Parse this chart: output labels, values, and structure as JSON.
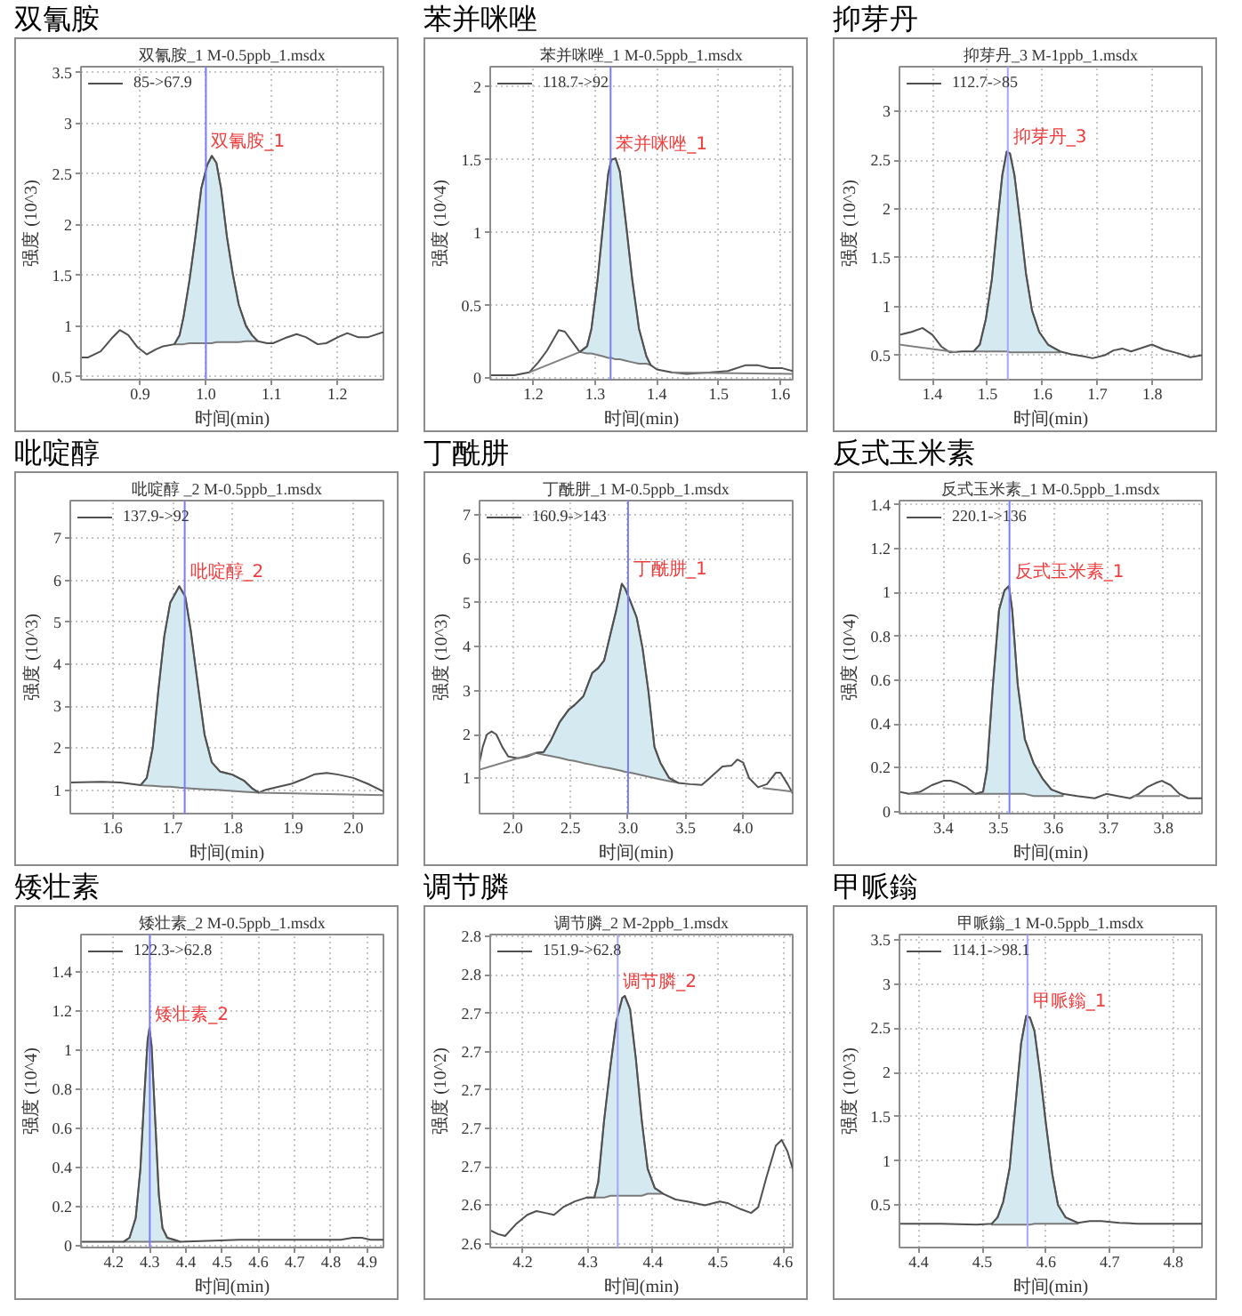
{
  "chart_data": [
    {
      "type": "line",
      "title": "双氰胺",
      "subtitle": "双氰胺_1 M-0.5ppb_1.msdx",
      "xlabel": "时间(min)",
      "ylabel": "强度 (10^3)",
      "xlim": [
        0.81,
        1.27
      ],
      "ylim": [
        0.47,
        3.56
      ],
      "xticks": [
        0.9,
        {
          "value": 1,
          "label": "1.0"
        },
        1.1,
        1.2
      ],
      "yticks": [
        0.5,
        1,
        1.5,
        2,
        2.5,
        3,
        3.5
      ],
      "grid": true,
      "legend": "top left",
      "series": [
        {
          "name": "85->67.9",
          "color": "#505050",
          "x": [
            0.81,
            0.821,
            0.84,
            0.857,
            0.869,
            0.882,
            0.896,
            0.91,
            0.924,
            0.935,
            0.952,
            0.96,
            0.966,
            0.975,
            0.984,
            0.993,
            1.002,
            1.009,
            1.016,
            1.023,
            1.032,
            1.041,
            1.05,
            1.061,
            1.07,
            1.079,
            1.093,
            1.102,
            1.12,
            1.138,
            1.152,
            1.17,
            1.183,
            1.201,
            1.215,
            1.231,
            1.247,
            1.27
          ],
          "values": [
            0.69,
            0.69,
            0.75,
            0.88,
            0.96,
            0.91,
            0.79,
            0.72,
            0.77,
            0.8,
            0.82,
            0.91,
            1.09,
            1.45,
            1.88,
            2.36,
            2.59,
            2.68,
            2.61,
            2.36,
            1.88,
            1.51,
            1.21,
            1.0,
            0.91,
            0.85,
            0.83,
            0.83,
            0.88,
            0.92,
            0.89,
            0.82,
            0.83,
            0.89,
            0.93,
            0.89,
            0.89,
            0.94
          ],
          "lower": [
            null,
            null,
            null,
            null,
            null,
            null,
            null,
            null,
            null,
            null,
            0.82,
            0.82,
            0.82,
            0.83,
            0.83,
            0.83,
            0.83,
            0.83,
            0.84,
            0.84,
            0.84,
            0.84,
            0.84,
            0.85,
            0.85,
            0.85,
            null,
            null,
            null,
            null,
            null,
            null,
            null,
            null,
            null,
            null,
            null,
            null
          ],
          "upper": [
            null,
            null,
            null,
            null,
            null,
            null,
            null,
            null,
            null,
            null,
            0.82,
            0.91,
            1.09,
            1.45,
            1.88,
            2.36,
            2.59,
            2.68,
            2.61,
            2.36,
            1.88,
            1.51,
            1.21,
            1.0,
            0.91,
            0.85,
            null,
            null,
            null,
            null,
            null,
            null,
            null,
            null,
            null,
            null,
            null,
            null
          ]
        }
      ],
      "ref_lines": [
        {
          "axis": "x",
          "value": 1.0,
          "color": "#7b7bff"
        }
      ],
      "annotations": [
        {
          "text": "双氰胺_1",
          "x": 1.0,
          "y": 2.68
        }
      ]
    },
    {
      "type": "line",
      "title": "苯并咪唑",
      "subtitle": "苯并咪唑_1 M-0.5ppb_1.msdx",
      "xlabel": "时间(min)",
      "ylabel": "强度 (10^4)",
      "xlim": [
        1.13,
        1.62
      ],
      "ylim": [
        -0.01,
        2.14
      ],
      "xticks": [
        1.2,
        1.3,
        1.4,
        1.5,
        1.6
      ],
      "yticks": [
        0,
        0.5,
        1,
        1.5,
        2
      ],
      "grid": true,
      "legend": "top left",
      "series": [
        {
          "name": "118.7->92",
          "color": "#505050",
          "x": [
            1.13,
            1.169,
            1.193,
            1.208,
            1.222,
            1.241,
            1.251,
            1.263,
            1.275,
            1.287,
            1.294,
            1.304,
            1.313,
            1.321,
            1.326,
            1.333,
            1.34,
            1.35,
            1.36,
            1.371,
            1.383,
            1.39,
            1.4,
            1.424,
            1.448,
            1.487,
            1.515,
            1.544,
            1.563,
            1.583,
            1.602,
            1.62
          ],
          "values": [
            0.02,
            0.02,
            0.04,
            0.11,
            0.19,
            0.33,
            0.32,
            0.25,
            0.18,
            0.22,
            0.34,
            0.68,
            1.06,
            1.4,
            1.5,
            1.51,
            1.42,
            1.06,
            0.68,
            0.34,
            0.15,
            0.09,
            0.06,
            0.04,
            0.03,
            0.04,
            0.05,
            0.09,
            0.09,
            0.07,
            0.07,
            0.05
          ],
          "lower": [
            null,
            null,
            null,
            null,
            null,
            null,
            null,
            null,
            0.18,
            0.17,
            0.17,
            0.16,
            0.15,
            0.14,
            0.14,
            0.13,
            0.13,
            0.12,
            0.11,
            0.1,
            0.1,
            0.09,
            null,
            null,
            null,
            null,
            null,
            null,
            null,
            null,
            null,
            null
          ],
          "upper": [
            null,
            null,
            null,
            null,
            null,
            null,
            null,
            null,
            0.18,
            0.22,
            0.34,
            0.68,
            1.06,
            1.4,
            1.5,
            1.51,
            1.42,
            1.06,
            0.68,
            0.34,
            0.15,
            0.09,
            null,
            null,
            null,
            null,
            null,
            null,
            null,
            null,
            null,
            null
          ]
        },
        {
          "color": "#808080",
          "x": [
            1.193,
            1.275
          ],
          "values": [
            0.04,
            0.18
          ]
        },
        {
          "color": "#808080",
          "x": [
            1.424,
            1.62
          ],
          "values": [
            0.04,
            0.03
          ]
        }
      ],
      "ref_lines": [
        {
          "axis": "x",
          "value": 1.325,
          "color": "#7b7bff"
        }
      ],
      "annotations": [
        {
          "text": "苯并咪唑_1",
          "x": 1.325,
          "y": 1.51
        }
      ]
    },
    {
      "type": "line",
      "title": "抑芽丹",
      "subtitle": "抑芽丹_3 M-1ppb_1.msdx",
      "xlabel": "时间(min)",
      "ylabel": "强度 (10^3)",
      "xlim": [
        1.34,
        1.89
      ],
      "ylim": [
        0.25,
        3.46
      ],
      "xticks": [
        1.4,
        1.5,
        1.6,
        1.7,
        1.8
      ],
      "yticks": [
        0.5,
        1,
        1.5,
        2,
        2.5,
        3
      ],
      "grid": true,
      "legend": "top left",
      "series": [
        {
          "name": "112.7->85",
          "color": "#505050",
          "x": [
            1.34,
            1.362,
            1.382,
            1.4,
            1.416,
            1.432,
            1.454,
            1.475,
            1.486,
            1.497,
            1.508,
            1.519,
            1.527,
            1.535,
            1.541,
            1.549,
            1.56,
            1.57,
            1.581,
            1.594,
            1.61,
            1.632,
            1.653,
            1.675,
            1.691,
            1.713,
            1.729,
            1.745,
            1.761,
            1.783,
            1.799,
            1.82,
            1.847,
            1.869,
            1.89
          ],
          "values": [
            0.71,
            0.74,
            0.78,
            0.71,
            0.59,
            0.53,
            0.54,
            0.54,
            0.61,
            0.87,
            1.28,
            1.91,
            2.35,
            2.59,
            2.57,
            2.35,
            1.84,
            1.34,
            0.96,
            0.74,
            0.61,
            0.54,
            0.51,
            0.49,
            0.47,
            0.5,
            0.55,
            0.57,
            0.54,
            0.58,
            0.61,
            0.56,
            0.52,
            0.48,
            0.5
          ],
          "lower": [
            null,
            null,
            null,
            null,
            null,
            null,
            null,
            0.54,
            0.54,
            0.54,
            0.54,
            0.54,
            0.54,
            0.54,
            0.53,
            0.53,
            0.53,
            0.53,
            0.53,
            0.53,
            0.53,
            0.53,
            null,
            null,
            null,
            null,
            null,
            null,
            null,
            null,
            null,
            null,
            null,
            null,
            null
          ],
          "upper": [
            null,
            null,
            null,
            null,
            null,
            null,
            null,
            0.54,
            0.61,
            0.87,
            1.28,
            1.91,
            2.35,
            2.59,
            2.57,
            2.35,
            1.84,
            1.34,
            0.96,
            0.74,
            0.61,
            0.54,
            null,
            null,
            null,
            null,
            null,
            null,
            null,
            null,
            null,
            null,
            null,
            null,
            null
          ]
        },
        {
          "color": "#808080",
          "x": [
            1.34,
            1.445
          ],
          "values": [
            0.61,
            0.53
          ]
        }
      ],
      "ref_lines": [
        {
          "axis": "x",
          "value": 1.537,
          "color": "#a6a6ff"
        }
      ],
      "annotations": [
        {
          "text": "抑芽丹_3",
          "x": 1.537,
          "y": 2.59
        }
      ]
    },
    {
      "type": "line",
      "title": "吡啶醇",
      "subtitle": "吡啶醇 _2 M-0.5ppb_1.msdx",
      "xlabel": "时间(min)",
      "ylabel": "强度 (10^3)",
      "xlim": [
        1.53,
        2.05
      ],
      "ylim": [
        0.44,
        7.9
      ],
      "xticks": [
        1.6,
        1.7,
        1.8,
        1.9,
        {
          "value": 2,
          "label": "2.0"
        }
      ],
      "yticks": [
        1,
        2,
        3,
        4,
        5,
        6,
        7
      ],
      "grid": true,
      "legend": "top left",
      "series": [
        {
          "name": "137.9->92",
          "color": "#505050",
          "x": [
            1.53,
            1.564,
            1.583,
            1.613,
            1.647,
            1.657,
            1.667,
            1.676,
            1.686,
            1.696,
            1.711,
            1.721,
            1.73,
            1.742,
            1.753,
            1.765,
            1.779,
            1.799,
            1.819,
            1.833,
            1.843,
            1.853,
            1.873,
            1.897,
            1.917,
            1.936,
            1.956,
            1.975,
            2.0,
            2.024,
            2.05
          ],
          "values": [
            1.18,
            1.19,
            1.2,
            1.18,
            1.12,
            1.29,
            2.02,
            3.34,
            4.66,
            5.47,
            5.86,
            5.61,
            4.81,
            3.49,
            2.32,
            1.66,
            1.44,
            1.37,
            1.22,
            1.03,
            0.94,
            1.0,
            1.07,
            1.15,
            1.26,
            1.38,
            1.41,
            1.37,
            1.29,
            1.15,
            0.97
          ],
          "lower": [
            null,
            null,
            null,
            null,
            1.12,
            1.11,
            1.1,
            1.09,
            1.08,
            1.08,
            1.06,
            1.05,
            1.04,
            1.03,
            1.02,
            1.01,
            1.0,
            0.98,
            0.96,
            0.95,
            0.94,
            null,
            null,
            null,
            null,
            null,
            null,
            null,
            null,
            null,
            null
          ],
          "upper": [
            null,
            null,
            null,
            null,
            1.12,
            1.29,
            2.02,
            3.34,
            4.66,
            5.47,
            5.86,
            5.61,
            4.81,
            3.49,
            2.32,
            1.66,
            1.44,
            1.37,
            1.22,
            1.03,
            0.94,
            null,
            null,
            null,
            null,
            null,
            null,
            null,
            null,
            null,
            null
          ]
        },
        {
          "color": "#808080",
          "x": [
            1.843,
            2.05
          ],
          "values": [
            0.94,
            0.88
          ]
        }
      ],
      "ref_lines": [
        {
          "axis": "x",
          "value": 1.72,
          "color": "#7b7bff"
        }
      ],
      "annotations": [
        {
          "text": "吡啶醇_2",
          "x": 1.72,
          "y": 5.86
        }
      ]
    },
    {
      "type": "line",
      "title": "丁酰肼",
      "subtitle": "丁酰肼_1 M-0.5ppb_1.msdx",
      "xlabel": "时间(min)",
      "ylabel": "强度 (10^3)",
      "xlim": [
        1.71,
        4.43
      ],
      "ylim": [
        0.2,
        7.32
      ],
      "xticks": [
        {
          "value": 2,
          "label": "2.0"
        },
        2.5,
        {
          "value": 3,
          "label": "3.0"
        },
        3.5,
        {
          "value": 4,
          "label": "4.0"
        }
      ],
      "yticks": [
        1,
        2,
        3,
        4,
        5,
        6,
        7
      ],
      "grid": true,
      "legend": "top left",
      "series": [
        {
          "name": "160.9->143",
          "color": "#505050",
          "x": [
            1.71,
            1.738,
            1.774,
            1.815,
            1.856,
            1.907,
            1.959,
            2.046,
            2.123,
            2.2,
            2.267,
            2.329,
            2.406,
            2.483,
            2.535,
            2.612,
            2.689,
            2.74,
            2.792,
            2.843,
            2.895,
            2.946,
            2.972,
            3.023,
            3.075,
            3.126,
            3.177,
            3.229,
            3.28,
            3.357,
            3.434,
            3.537,
            3.64,
            3.692,
            3.769,
            3.82,
            3.897,
            3.949,
            4.0,
            4.051,
            4.129,
            4.206,
            4.283,
            4.324,
            4.386,
            4.43
          ],
          "values": [
            1.36,
            1.72,
            2.0,
            2.07,
            2.0,
            1.72,
            1.5,
            1.46,
            1.5,
            1.58,
            1.6,
            1.86,
            2.28,
            2.56,
            2.67,
            2.87,
            3.4,
            3.51,
            3.68,
            4.24,
            4.8,
            5.43,
            5.33,
            5.01,
            4.66,
            3.96,
            2.98,
            1.72,
            1.36,
            1.01,
            0.9,
            0.87,
            0.85,
            0.97,
            1.15,
            1.27,
            1.29,
            1.43,
            1.36,
            1.01,
            0.8,
            0.87,
            1.13,
            1.13,
            0.87,
            0.66
          ],
          "lower": [
            null,
            null,
            null,
            null,
            null,
            null,
            null,
            null,
            null,
            1.58,
            1.54,
            1.51,
            1.47,
            1.42,
            1.4,
            1.35,
            1.31,
            1.28,
            1.25,
            1.23,
            1.2,
            1.17,
            1.15,
            1.13,
            1.1,
            1.07,
            1.04,
            1.01,
            0.98,
            0.94,
            0.9,
            null,
            null,
            null,
            null,
            null,
            null,
            null,
            null,
            null,
            null,
            null,
            null,
            null,
            null,
            null
          ],
          "upper": [
            null,
            null,
            null,
            null,
            null,
            null,
            null,
            null,
            null,
            1.58,
            1.6,
            1.86,
            2.28,
            2.56,
            2.67,
            2.87,
            3.4,
            3.51,
            3.68,
            4.24,
            4.8,
            5.43,
            5.33,
            5.01,
            4.66,
            3.96,
            2.98,
            1.72,
            1.36,
            1.01,
            0.9,
            null,
            null,
            null,
            null,
            null,
            null,
            null,
            null,
            null,
            null,
            null,
            null,
            null,
            null,
            null
          ]
        },
        {
          "color": "#808080",
          "x": [
            1.71,
            2.2
          ],
          "values": [
            1.2,
            1.58
          ]
        },
        {
          "color": "#808080",
          "x": [
            4.17,
            4.43
          ],
          "values": [
            0.78,
            0.7
          ]
        }
      ],
      "ref_lines": [
        {
          "axis": "x",
          "value": 3.0,
          "color": "#7b7bff"
        }
      ],
      "annotations": [
        {
          "text": "丁酰肼_1",
          "x": 3.0,
          "y": 5.43
        }
      ]
    },
    {
      "type": "line",
      "title": "反式玉米素",
      "subtitle": "反式玉米素_1 M-0.5ppb_1.msdx",
      "xlabel": "时间(min)",
      "ylabel": "强度 (10^4)",
      "xlim": [
        3.32,
        3.87
      ],
      "ylim": [
        -0.01,
        1.42
      ],
      "xticks": [
        3.4,
        3.5,
        3.6,
        3.7,
        3.8
      ],
      "yticks": [
        0,
        0.2,
        0.4,
        0.6,
        0.8,
        1,
        1.2,
        1.4
      ],
      "grid": true,
      "legend": "top left",
      "series": [
        {
          "name": "220.1->136",
          "color": "#505050",
          "x": [
            3.32,
            3.337,
            3.358,
            3.379,
            3.4,
            3.413,
            3.426,
            3.442,
            3.458,
            3.472,
            3.479,
            3.49,
            3.501,
            3.511,
            3.519,
            3.525,
            3.535,
            3.548,
            3.564,
            3.58,
            3.596,
            3.617,
            3.643,
            3.675,
            3.696,
            3.717,
            3.739,
            3.755,
            3.77,
            3.786,
            3.797,
            3.813,
            3.829,
            3.845,
            3.87
          ],
          "values": [
            0.09,
            0.08,
            0.09,
            0.12,
            0.14,
            0.14,
            0.13,
            0.11,
            0.08,
            0.09,
            0.19,
            0.58,
            0.92,
            1.01,
            1.03,
            0.92,
            0.58,
            0.33,
            0.22,
            0.15,
            0.1,
            0.08,
            0.07,
            0.06,
            0.08,
            0.07,
            0.06,
            0.08,
            0.11,
            0.13,
            0.14,
            0.12,
            0.08,
            0.06,
            0.06
          ],
          "lower": [
            null,
            null,
            null,
            null,
            null,
            null,
            null,
            null,
            0.08,
            0.08,
            0.08,
            0.08,
            0.08,
            0.08,
            0.08,
            0.08,
            0.08,
            0.08,
            0.07,
            0.07,
            0.07,
            0.07,
            null,
            null,
            null,
            null,
            null,
            null,
            null,
            null,
            null,
            null,
            null,
            null,
            null
          ],
          "upper": [
            null,
            null,
            null,
            null,
            null,
            null,
            null,
            null,
            0.08,
            0.09,
            0.19,
            0.58,
            0.92,
            1.01,
            1.03,
            0.92,
            0.58,
            0.33,
            0.22,
            0.15,
            0.1,
            0.08,
            null,
            null,
            null,
            null,
            null,
            null,
            null,
            null,
            null,
            null,
            null,
            null,
            null
          ]
        },
        {
          "color": "#808080",
          "x": [
            3.339,
            3.458
          ],
          "values": [
            0.08,
            0.08
          ]
        },
        {
          "color": "#808080",
          "x": [
            3.745,
            3.83
          ],
          "values": [
            0.07,
            0.07
          ]
        }
      ],
      "ref_lines": [
        {
          "axis": "x",
          "value": 3.52,
          "color": "#7b7bff"
        }
      ],
      "annotations": [
        {
          "text": "反式玉米素_1",
          "x": 3.52,
          "y": 1.03
        }
      ]
    },
    {
      "type": "line",
      "title": "矮壮素",
      "subtitle": "矮壮素_2 M-0.5ppb_1.msdx",
      "xlabel": "时间(min)",
      "ylabel": "强度 (10^4)",
      "xlim": [
        4.11,
        4.945
      ],
      "ylim": [
        -0.01,
        1.59
      ],
      "xticks": [
        4.2,
        4.3,
        4.4,
        4.5,
        4.6,
        4.7,
        4.8,
        4.9
      ],
      "yticks": [
        0,
        0.2,
        0.4,
        0.6,
        0.8,
        1,
        1.2,
        1.4
      ],
      "grid": true,
      "legend": "top left",
      "series": [
        {
          "name": "122.3->62.8",
          "color": "#505050",
          "x": [
            4.11,
            4.187,
            4.228,
            4.244,
            4.261,
            4.274,
            4.285,
            4.294,
            4.299,
            4.305,
            4.315,
            4.325,
            4.335,
            4.348,
            4.367,
            4.384,
            4.548,
            4.58,
            4.63,
            4.827,
            4.86,
            4.885,
            4.909,
            4.945
          ],
          "values": [
            0.02,
            0.02,
            0.02,
            0.04,
            0.14,
            0.39,
            0.77,
            1.05,
            1.11,
            1.02,
            0.64,
            0.26,
            0.09,
            0.04,
            0.03,
            0.02,
            0.03,
            0.03,
            0.03,
            0.03,
            0.04,
            0.04,
            0.03,
            0.03
          ],
          "lower": [
            null,
            null,
            0.02,
            0.02,
            0.02,
            0.02,
            0.02,
            0.02,
            0.02,
            0.02,
            0.02,
            0.02,
            0.02,
            0.02,
            0.02,
            0.02,
            null,
            null,
            null,
            null,
            null,
            null,
            null,
            null
          ],
          "upper": [
            null,
            null,
            0.02,
            0.04,
            0.14,
            0.39,
            0.77,
            1.05,
            1.11,
            1.02,
            0.64,
            0.26,
            0.09,
            0.04,
            0.03,
            0.02,
            null,
            null,
            null,
            null,
            null,
            null,
            null,
            null
          ]
        }
      ],
      "ref_lines": [
        {
          "axis": "x",
          "value": 4.3,
          "color": "#7b7bff"
        }
      ],
      "annotations": [
        {
          "text": "矮壮素_2",
          "x": 4.3,
          "y": 1.11
        }
      ]
    },
    {
      "type": "line",
      "title": "调节膦",
      "subtitle": "调节膦_2 M-2ppb_1.msdx",
      "xlabel": "时间(min)",
      "ylabel": "强度 (10^2)",
      "xlim": [
        4.15,
        4.615
      ],
      "ylim": [
        2.618,
        2.781
      ],
      "xticks": [
        4.2,
        4.3,
        4.4,
        4.5,
        4.6
      ],
      "yticks": [
        {
          "value": 2.62,
          "label": "2.6"
        },
        {
          "value": 2.64,
          "label": "2.6"
        },
        {
          "value": 2.66,
          "label": "2.7"
        },
        {
          "value": 2.68,
          "label": "2.7"
        },
        {
          "value": 2.7,
          "label": "2.7"
        },
        {
          "value": 2.72,
          "label": "2.7"
        },
        {
          "value": 2.74,
          "label": "2.7"
        },
        {
          "value": 2.76,
          "label": "2.8"
        },
        {
          "value": 2.78,
          "label": "2.8"
        }
      ],
      "grid": true,
      "legend": "top left",
      "series": [
        {
          "name": "151.9->62.8",
          "color": "#505050",
          "x": [
            4.15,
            4.162,
            4.173,
            4.189,
            4.207,
            4.221,
            4.235,
            4.248,
            4.262,
            4.28,
            4.298,
            4.31,
            4.316,
            4.325,
            4.335,
            4.344,
            4.353,
            4.357,
            4.365,
            4.374,
            4.383,
            4.392,
            4.403,
            4.416,
            4.435,
            4.453,
            4.48,
            4.503,
            4.516,
            4.535,
            4.551,
            4.562,
            4.575,
            4.589,
            4.598,
            4.607,
            4.615
          ],
          "values": [
            2.627,
            2.625,
            2.624,
            2.63,
            2.635,
            2.637,
            2.636,
            2.635,
            2.639,
            2.642,
            2.644,
            2.644,
            2.652,
            2.684,
            2.713,
            2.736,
            2.748,
            2.749,
            2.742,
            2.716,
            2.684,
            2.659,
            2.649,
            2.646,
            2.643,
            2.642,
            2.64,
            2.642,
            2.641,
            2.638,
            2.636,
            2.639,
            2.655,
            2.671,
            2.674,
            2.668,
            2.659
          ],
          "lower": [
            null,
            null,
            null,
            null,
            null,
            null,
            null,
            null,
            null,
            null,
            2.644,
            2.644,
            2.644,
            2.644,
            2.645,
            2.645,
            2.645,
            2.645,
            2.645,
            2.645,
            2.645,
            2.646,
            2.646,
            2.646,
            null,
            null,
            null,
            null,
            null,
            null,
            null,
            null,
            null,
            null,
            null,
            null,
            null
          ],
          "upper": [
            null,
            null,
            null,
            null,
            null,
            null,
            null,
            null,
            null,
            null,
            2.644,
            2.644,
            2.652,
            2.684,
            2.713,
            2.736,
            2.748,
            2.749,
            2.742,
            2.716,
            2.684,
            2.659,
            2.649,
            2.646,
            null,
            null,
            null,
            null,
            null,
            null,
            null,
            null,
            null,
            null,
            null,
            null,
            null
          ]
        }
      ],
      "ref_lines": [
        {
          "axis": "x",
          "value": 4.346,
          "color": "#a6a6ff"
        }
      ],
      "annotations": [
        {
          "text": "调节膦_2",
          "x": 4.346,
          "y": 2.749
        }
      ]
    },
    {
      "type": "line",
      "title": "甲哌鎓",
      "subtitle": "甲哌鎓_1 M-0.5ppb_1.msdx",
      "xlabel": "时间(min)",
      "ylabel": "强度 (10^3)",
      "xlim": [
        4.37,
        4.845
      ],
      "ylim": [
        0.02,
        3.56
      ],
      "xticks": [
        4.4,
        4.5,
        4.6,
        4.7,
        4.8
      ],
      "yticks": [
        0.5,
        1,
        1.5,
        2,
        2.5,
        3,
        3.5
      ],
      "grid": true,
      "legend": "top left",
      "series": [
        {
          "name": "114.1->98.1",
          "color": "#505050",
          "x": [
            4.37,
            4.435,
            4.491,
            4.515,
            4.524,
            4.533,
            4.543,
            4.552,
            4.561,
            4.569,
            4.575,
            4.582,
            4.591,
            4.6,
            4.61,
            4.619,
            4.631,
            4.65,
            4.669,
            4.687,
            4.715,
            4.743,
            4.809,
            4.845
          ],
          "values": [
            0.29,
            0.29,
            0.28,
            0.29,
            0.36,
            0.54,
            0.92,
            1.62,
            2.33,
            2.64,
            2.62,
            2.47,
            1.98,
            1.42,
            0.85,
            0.5,
            0.36,
            0.3,
            0.32,
            0.32,
            0.3,
            0.29,
            0.29,
            0.29
          ],
          "lower": [
            null,
            null,
            null,
            0.28,
            0.28,
            0.28,
            0.28,
            0.28,
            0.28,
            0.28,
            0.28,
            0.29,
            0.29,
            0.29,
            0.29,
            0.29,
            0.29,
            0.29,
            null,
            null,
            null,
            null,
            null,
            null
          ],
          "upper": [
            null,
            null,
            null,
            0.29,
            0.36,
            0.54,
            0.92,
            1.62,
            2.33,
            2.64,
            2.62,
            2.47,
            1.98,
            1.42,
            0.85,
            0.5,
            0.36,
            0.3,
            null,
            null,
            null,
            null,
            null,
            null
          ]
        }
      ],
      "ref_lines": [
        {
          "axis": "x",
          "value": 4.571,
          "color": "#a6a6ff"
        }
      ],
      "annotations": [
        {
          "text": "甲哌鎓_1",
          "x": 4.571,
          "y": 2.64
        }
      ]
    }
  ]
}
